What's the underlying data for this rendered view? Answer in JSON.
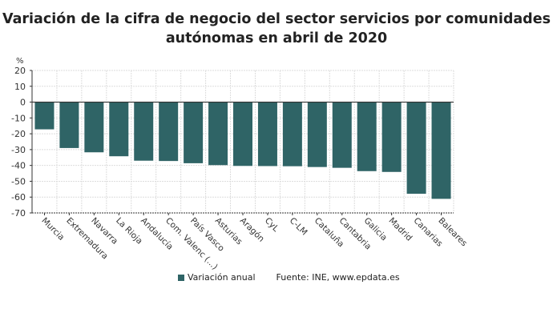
{
  "chart_data": {
    "type": "bar",
    "title": "Variación de la cifra de negocio del sector servicios por comunidades autónomas en abril de 2020",
    "ylabel": "%",
    "ylim": [
      -70,
      20
    ],
    "yticks": [
      20,
      10,
      0,
      -10,
      -20,
      -30,
      -40,
      -50,
      -60,
      -70
    ],
    "grid": true,
    "legend_position": "bottom",
    "categories": [
      "Murcia",
      "Extremadura",
      "Navarra",
      "La Rioja",
      "Andalucía",
      "Com. Valenc (...)",
      "País Vasco",
      "Asturias",
      "Aragón",
      "CyL",
      "C-LM",
      "Cataluña",
      "Cantabria",
      "Galicia",
      "Madrid",
      "Canarias",
      "Baleares"
    ],
    "series": [
      {
        "name": "Variación anual",
        "color": "#2f6466",
        "values": [
          -17.2,
          -29,
          -31.7,
          -34.2,
          -37,
          -37.2,
          -38.6,
          -39.8,
          -40.3,
          -40.4,
          -40.5,
          -41,
          -41.5,
          -43.6,
          -44.1,
          -57.9,
          -61.1
        ]
      }
    ]
  },
  "source": "Fuente: INE, www.epdata.es"
}
